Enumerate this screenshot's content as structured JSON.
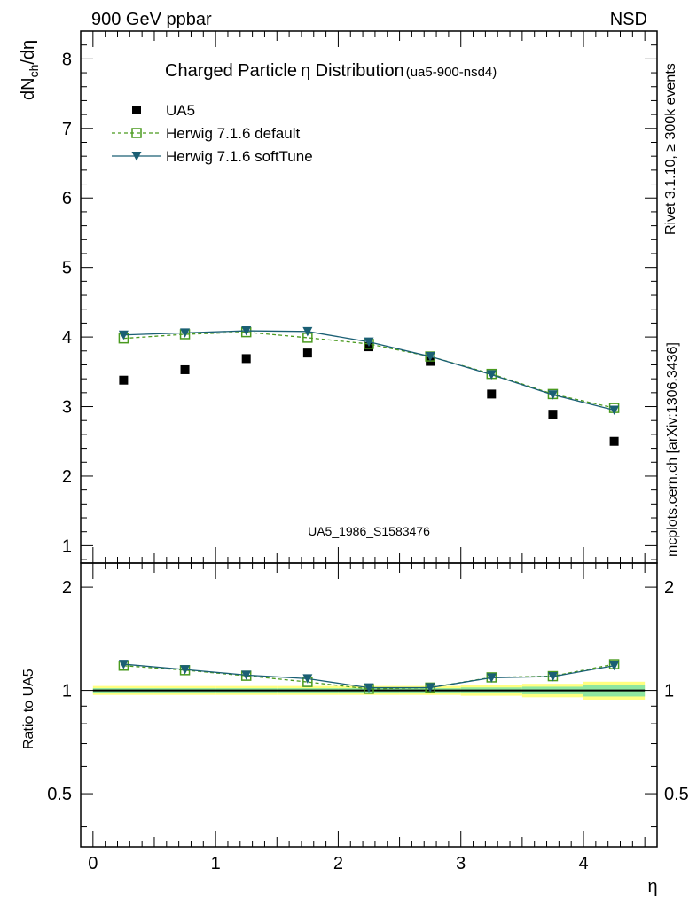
{
  "header": {
    "left": "900 GeV ppbar",
    "right": "NSD"
  },
  "side_labels": {
    "rivet": "Rivet 3.1.10, ≥ 300k events",
    "mcplots": "mcplots.cern.ch [arXiv:1306.3436]"
  },
  "chart_data": [
    {
      "type": "scatter",
      "panel": "main",
      "title_main": "Charged Particle",
      "title_symbol": "η",
      "title_rest": " Distribution",
      "title_suffix": "(ua5-900-nsd4)",
      "ylabel": "dN_ch/dη",
      "watermark": "UA5_1986_S1583476",
      "xlim": [
        -0.1,
        4.6
      ],
      "ylim": [
        0.75,
        8.4
      ],
      "yticks": [
        1,
        2,
        3,
        4,
        5,
        6,
        7,
        8
      ],
      "legend_position": "top-left",
      "x": [
        0.25,
        0.75,
        1.25,
        1.75,
        2.25,
        2.75,
        3.25,
        3.75,
        4.25
      ],
      "series": [
        {
          "name": "UA5",
          "color": "#000000",
          "marker": "filled-square",
          "values": [
            3.38,
            3.53,
            3.69,
            3.77,
            3.86,
            3.65,
            3.18,
            2.89,
            2.5
          ]
        },
        {
          "name": "Herwig 7.1.6 default",
          "color": "#4a9a1f",
          "marker": "open-square",
          "line": "dashed",
          "values": [
            3.98,
            4.04,
            4.07,
            3.99,
            3.9,
            3.72,
            3.47,
            3.18,
            2.98
          ]
        },
        {
          "name": "Herwig 7.1.6 softTune",
          "color": "#1a5f74",
          "marker": "filled-triangle-down",
          "line": "solid",
          "values": [
            4.03,
            4.06,
            4.09,
            4.08,
            3.93,
            3.72,
            3.46,
            3.17,
            2.95
          ]
        }
      ]
    },
    {
      "type": "line",
      "panel": "ratio",
      "ylabel": "Ratio to UA5",
      "xlabel": "η",
      "xlim": [
        -0.1,
        4.6
      ],
      "ylim": [
        0.35,
        2.35
      ],
      "yticks": [
        0.5,
        1,
        2
      ],
      "yscale": "log",
      "xticks": [
        0,
        1,
        2,
        3,
        4
      ],
      "reference_line": 1,
      "x": [
        0.25,
        0.75,
        1.25,
        1.75,
        2.25,
        2.75,
        3.25,
        3.75,
        4.25
      ],
      "band_edges": [
        0,
        0.5,
        1,
        1.5,
        2,
        2.5,
        3,
        3.5,
        4,
        4.5
      ],
      "band_stat": [
        0.015,
        0.015,
        0.015,
        0.015,
        0.015,
        0.015,
        0.02,
        0.025,
        0.04
      ],
      "band_total": [
        0.03,
        0.03,
        0.03,
        0.03,
        0.03,
        0.03,
        0.035,
        0.045,
        0.06
      ],
      "band_stat_color": "#8ee6a0",
      "band_total_color": "#ffff80",
      "series": [
        {
          "name": "Herwig 7.1.6 default",
          "color": "#4a9a1f",
          "marker": "open-square",
          "line": "dashed",
          "values": [
            1.18,
            1.145,
            1.103,
            1.058,
            1.01,
            1.019,
            1.091,
            1.1,
            1.192
          ]
        },
        {
          "name": "Herwig 7.1.6 softTune",
          "color": "#1a5f74",
          "marker": "filled-triangle-down",
          "line": "solid",
          "values": [
            1.192,
            1.15,
            1.108,
            1.082,
            1.018,
            1.019,
            1.088,
            1.097,
            1.18
          ]
        }
      ]
    }
  ]
}
